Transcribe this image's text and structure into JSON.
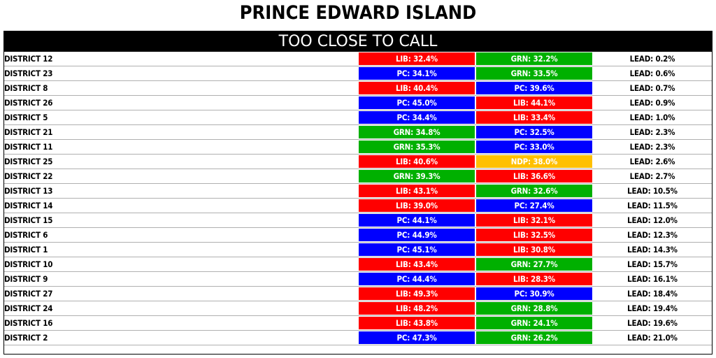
{
  "title": "PRINCE EDWARD ISLAND",
  "banner": "TOO CLOSE TO CALL",
  "party_colors": {
    "LIB": "#ff0000",
    "PC": "#0000ff",
    "GRN": "#00b000",
    "NDP": "#ffc000"
  },
  "rows": [
    {
      "district": "DISTRICT 12",
      "first": {
        "party": "LIB",
        "text": "LIB: 32.4%"
      },
      "second": {
        "party": "GRN",
        "text": "GRN: 32.2%"
      },
      "lead": "LEAD: 0.2%"
    },
    {
      "district": "DISTRICT 23",
      "first": {
        "party": "PC",
        "text": "PC: 34.1%"
      },
      "second": {
        "party": "GRN",
        "text": "GRN: 33.5%"
      },
      "lead": "LEAD: 0.6%"
    },
    {
      "district": "DISTRICT 8",
      "first": {
        "party": "LIB",
        "text": "LIB: 40.4%"
      },
      "second": {
        "party": "PC",
        "text": "PC: 39.6%"
      },
      "lead": "LEAD: 0.7%"
    },
    {
      "district": "DISTRICT 26",
      "first": {
        "party": "PC",
        "text": "PC: 45.0%"
      },
      "second": {
        "party": "LIB",
        "text": "LIB: 44.1%"
      },
      "lead": "LEAD: 0.9%"
    },
    {
      "district": "DISTRICT 5",
      "first": {
        "party": "PC",
        "text": "PC: 34.4%"
      },
      "second": {
        "party": "LIB",
        "text": "LIB: 33.4%"
      },
      "lead": "LEAD: 1.0%"
    },
    {
      "district": "DISTRICT 21",
      "first": {
        "party": "GRN",
        "text": "GRN: 34.8%"
      },
      "second": {
        "party": "PC",
        "text": "PC: 32.5%"
      },
      "lead": "LEAD: 2.3%"
    },
    {
      "district": "DISTRICT 11",
      "first": {
        "party": "GRN",
        "text": "GRN: 35.3%"
      },
      "second": {
        "party": "PC",
        "text": "PC: 33.0%"
      },
      "lead": "LEAD: 2.3%"
    },
    {
      "district": "DISTRICT 25",
      "first": {
        "party": "LIB",
        "text": "LIB: 40.6%"
      },
      "second": {
        "party": "NDP",
        "text": "NDP: 38.0%"
      },
      "lead": "LEAD: 2.6%"
    },
    {
      "district": "DISTRICT 22",
      "first": {
        "party": "GRN",
        "text": "GRN: 39.3%"
      },
      "second": {
        "party": "LIB",
        "text": "LIB: 36.6%"
      },
      "lead": "LEAD: 2.7%"
    },
    {
      "district": "DISTRICT 13",
      "first": {
        "party": "LIB",
        "text": "LIB: 43.1%"
      },
      "second": {
        "party": "GRN",
        "text": "GRN: 32.6%"
      },
      "lead": "LEAD: 10.5%"
    },
    {
      "district": "DISTRICT 14",
      "first": {
        "party": "LIB",
        "text": "LIB: 39.0%"
      },
      "second": {
        "party": "PC",
        "text": "PC: 27.4%"
      },
      "lead": "LEAD: 11.5%"
    },
    {
      "district": "DISTRICT 15",
      "first": {
        "party": "PC",
        "text": "PC: 44.1%"
      },
      "second": {
        "party": "LIB",
        "text": "LIB: 32.1%"
      },
      "lead": "LEAD: 12.0%"
    },
    {
      "district": "DISTRICT 6",
      "first": {
        "party": "PC",
        "text": "PC: 44.9%"
      },
      "second": {
        "party": "LIB",
        "text": "LIB: 32.5%"
      },
      "lead": "LEAD: 12.3%"
    },
    {
      "district": "DISTRICT 1",
      "first": {
        "party": "PC",
        "text": "PC: 45.1%"
      },
      "second": {
        "party": "LIB",
        "text": "LIB: 30.8%"
      },
      "lead": "LEAD: 14.3%"
    },
    {
      "district": "DISTRICT 10",
      "first": {
        "party": "LIB",
        "text": "LIB: 43.4%"
      },
      "second": {
        "party": "GRN",
        "text": "GRN: 27.7%"
      },
      "lead": "LEAD: 15.7%"
    },
    {
      "district": "DISTRICT 9",
      "first": {
        "party": "PC",
        "text": "PC: 44.4%"
      },
      "second": {
        "party": "LIB",
        "text": "LIB: 28.3%"
      },
      "lead": "LEAD: 16.1%"
    },
    {
      "district": "DISTRICT 27",
      "first": {
        "party": "LIB",
        "text": "LIB: 49.3%"
      },
      "second": {
        "party": "PC",
        "text": "PC: 30.9%"
      },
      "lead": "LEAD: 18.4%"
    },
    {
      "district": "DISTRICT 24",
      "first": {
        "party": "LIB",
        "text": "LIB: 48.2%"
      },
      "second": {
        "party": "GRN",
        "text": "GRN: 28.8%"
      },
      "lead": "LEAD: 19.4%"
    },
    {
      "district": "DISTRICT 16",
      "first": {
        "party": "LIB",
        "text": "LIB: 43.8%"
      },
      "second": {
        "party": "GRN",
        "text": "GRN: 24.1%"
      },
      "lead": "LEAD: 19.6%"
    },
    {
      "district": "DISTRICT 2",
      "first": {
        "party": "PC",
        "text": "PC: 47.3%"
      },
      "second": {
        "party": "GRN",
        "text": "GRN: 26.2%"
      },
      "lead": "LEAD: 21.0%"
    }
  ]
}
